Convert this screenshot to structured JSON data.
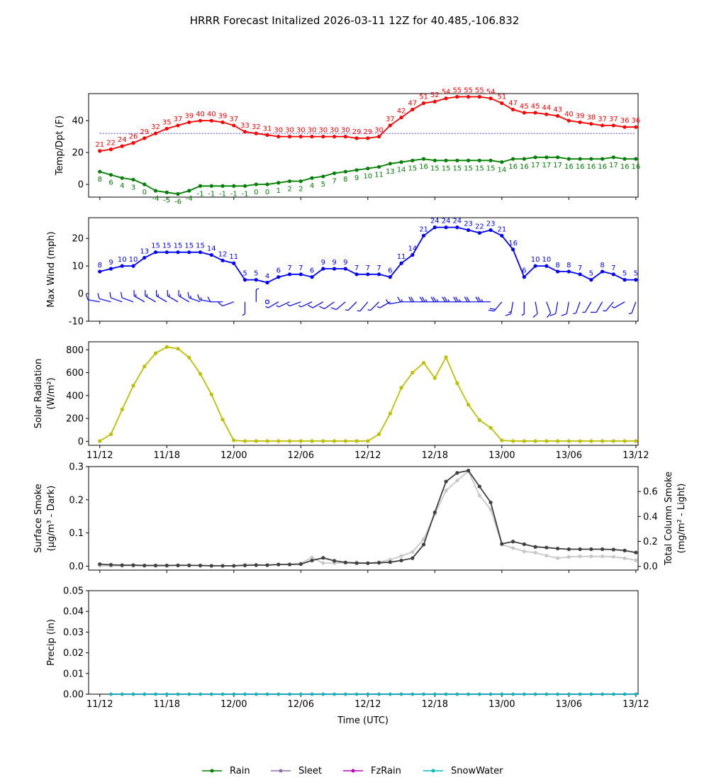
{
  "title": "HRRR Forecast Initalized 2026-03-11 12Z for 40.485,-106.832",
  "x_axis": {
    "label": "Time (UTC)",
    "ticks": [
      {
        "hour": 0,
        "label": "11/12"
      },
      {
        "hour": 6,
        "label": "11/18"
      },
      {
        "hour": 12,
        "label": "12/00"
      },
      {
        "hour": 18,
        "label": "12/06"
      },
      {
        "hour": 24,
        "label": "12/12"
      },
      {
        "hour": 30,
        "label": "12/18"
      },
      {
        "hour": 36,
        "label": "13/00"
      },
      {
        "hour": 42,
        "label": "13/06"
      },
      {
        "hour": 48,
        "label": "13/12"
      }
    ],
    "range": [
      -1,
      48.2
    ]
  },
  "colors": {
    "temp": "#ff0000",
    "dewpoint": "#008000",
    "freezing_line": "#0000ff",
    "wind": "#0000ff",
    "solar": "#bfbf00",
    "smoke_surface": "#404040",
    "smoke_column": "#c8c8c8",
    "rain": "#008000",
    "sleet": "#8c6fa6",
    "fzrain": "#bf00bf",
    "snowwater": "#00bfbf"
  },
  "legend": {
    "rain": "Rain",
    "sleet": "Sleet",
    "fzrain": "FzRain",
    "snowwater": "SnowWater"
  },
  "chart_data": [
    {
      "type": "line",
      "name": "temperature-dewpoint",
      "ylabel": "Temp/Dpt (F)",
      "ylim": [
        -8,
        57
      ],
      "yticks": [
        0,
        20,
        40
      ],
      "reference_line": 32,
      "x": [
        0,
        1,
        2,
        3,
        4,
        5,
        6,
        7,
        8,
        9,
        10,
        11,
        12,
        13,
        14,
        15,
        16,
        17,
        18,
        19,
        20,
        21,
        22,
        23,
        24,
        25,
        26,
        27,
        28,
        29,
        30,
        31,
        32,
        33,
        34,
        35,
        36,
        37,
        38,
        39,
        40,
        41,
        42,
        43,
        44,
        45,
        46,
        47,
        48
      ],
      "series": [
        {
          "name": "Temperature",
          "values": [
            21,
            22,
            24,
            26,
            29,
            32,
            35,
            37,
            39,
            40,
            40,
            39,
            37,
            33,
            32,
            31,
            30,
            30,
            30,
            30,
            30,
            30,
            30,
            29,
            29,
            30,
            37,
            42,
            47,
            51,
            52,
            54,
            55,
            55,
            55,
            54,
            51,
            47,
            45,
            45,
            44,
            43,
            40,
            39,
            38,
            37,
            37,
            36,
            36
          ]
        },
        {
          "name": "Dewpoint",
          "values": [
            8,
            6,
            4,
            3,
            0,
            -4,
            -5,
            -6,
            -4,
            -1,
            -1,
            -1,
            -1,
            -1,
            0,
            0,
            1,
            2,
            2,
            4,
            5,
            7,
            8,
            9,
            10,
            11,
            13,
            14,
            15,
            16,
            15,
            15,
            15,
            15,
            15,
            15,
            14,
            16,
            16,
            17,
            17,
            17,
            16,
            16,
            16,
            16,
            17,
            16,
            16
          ]
        }
      ]
    },
    {
      "type": "line",
      "name": "max-wind",
      "ylabel": "Max Wind (mph)",
      "ylim": [
        -10,
        27.5
      ],
      "yticks": [
        -10,
        0,
        10,
        20
      ],
      "x": [
        0,
        1,
        2,
        3,
        4,
        5,
        6,
        7,
        8,
        9,
        10,
        11,
        12,
        13,
        14,
        15,
        16,
        17,
        18,
        19,
        20,
        21,
        22,
        23,
        24,
        25,
        26,
        27,
        28,
        29,
        30,
        31,
        32,
        33,
        34,
        35,
        36,
        37,
        38,
        39,
        40,
        41,
        42,
        43,
        44,
        45,
        46,
        47,
        48
      ],
      "series": [
        {
          "name": "Max Wind",
          "values": [
            8,
            9,
            10,
            10,
            13,
            15,
            15,
            15,
            15,
            15,
            14,
            12,
            11,
            5,
            5,
            4,
            6,
            7,
            7,
            6,
            9,
            9,
            9,
            7,
            7,
            7,
            6,
            11,
            14,
            21,
            24,
            24,
            24,
            23,
            22,
            23,
            21,
            16,
            6,
            10,
            10,
            8,
            8,
            7,
            5,
            8,
            7,
            5,
            5
          ]
        }
      ],
      "barb_dirs_deg": [
        280,
        285,
        290,
        290,
        300,
        300,
        300,
        300,
        300,
        290,
        280,
        270,
        250,
        180,
        0,
        240,
        240,
        245,
        250,
        245,
        240,
        235,
        230,
        225,
        220,
        225,
        240,
        260,
        270,
        270,
        270,
        270,
        270,
        270,
        270,
        270,
        220,
        190,
        180,
        170,
        160,
        190,
        190,
        200,
        210,
        210,
        220,
        240,
        200
      ]
    },
    {
      "type": "line",
      "name": "solar-radiation",
      "ylabel": "Solar Radiation",
      "ylabel2": "(W/m²)",
      "ylim": [
        -35,
        870
      ],
      "yticks": [
        0,
        200,
        400,
        600,
        800
      ],
      "x": [
        0,
        1,
        2,
        3,
        4,
        5,
        6,
        7,
        8,
        9,
        10,
        11,
        12,
        13,
        14,
        15,
        16,
        17,
        18,
        19,
        20,
        21,
        22,
        23,
        24,
        25,
        26,
        27,
        28,
        29,
        30,
        31,
        32,
        33,
        34,
        35,
        36,
        37,
        38,
        39,
        40,
        41,
        42,
        43,
        44,
        45,
        46,
        47,
        48
      ],
      "series": [
        {
          "name": "Solar Radiation",
          "values": [
            2,
            62,
            278,
            486,
            654,
            770,
            825,
            810,
            732,
            590,
            410,
            190,
            8,
            2,
            2,
            2,
            2,
            2,
            2,
            2,
            2,
            2,
            2,
            2,
            2,
            62,
            243,
            468,
            600,
            686,
            553,
            735,
            508,
            320,
            185,
            118,
            8,
            2,
            2,
            2,
            2,
            2,
            2,
            2,
            2,
            2,
            2,
            2,
            2
          ]
        }
      ]
    },
    {
      "type": "line",
      "name": "smoke",
      "ylabel": "Surface Smoke",
      "ylabel2": "(μg/m³ - Dark)",
      "ylabel_right": "Total Column Smoke",
      "ylabel_right2": "(mg/m² - Light)",
      "ylim": [
        -0.012,
        0.3
      ],
      "yticks": [
        0.0,
        0.1,
        0.2,
        0.3
      ],
      "ylim_right": [
        -0.03,
        0.8
      ],
      "yticks_right": [
        0.0,
        0.2,
        0.4,
        0.6
      ],
      "x": [
        0,
        1,
        2,
        3,
        4,
        5,
        6,
        7,
        8,
        9,
        10,
        11,
        12,
        13,
        14,
        15,
        16,
        17,
        18,
        19,
        20,
        21,
        22,
        23,
        24,
        25,
        26,
        27,
        28,
        29,
        30,
        31,
        32,
        33,
        34,
        35,
        36,
        37,
        38,
        39,
        40,
        41,
        42,
        43,
        44,
        45,
        46,
        47,
        48
      ],
      "series": [
        {
          "name": "Surface Smoke",
          "axis": "left",
          "values": [
            0.006,
            0.004,
            0.003,
            0.003,
            0.002,
            0.002,
            0.002,
            0.002,
            0.002,
            0.002,
            0.001,
            0.001,
            0.001,
            0.002,
            0.003,
            0.003,
            0.005,
            0.005,
            0.006,
            0.017,
            0.025,
            0.016,
            0.011,
            0.009,
            0.009,
            0.01,
            0.012,
            0.017,
            0.024,
            0.065,
            0.162,
            0.255,
            0.281,
            0.288,
            0.24,
            0.192,
            0.067,
            0.074,
            0.066,
            0.058,
            0.056,
            0.053,
            0.051,
            0.051,
            0.051,
            0.051,
            0.05,
            0.047,
            0.041
          ]
        },
        {
          "name": "Total Column Smoke",
          "axis": "right",
          "values": [
            0.005,
            0.004,
            0.004,
            0.004,
            0.003,
            0.003,
            0.003,
            0.012,
            0.012,
            0.004,
            0.004,
            0.004,
            0.004,
            0.015,
            0.013,
            0.01,
            0.013,
            0.016,
            0.024,
            0.072,
            0.027,
            0.026,
            0.03,
            0.032,
            0.024,
            0.035,
            0.053,
            0.083,
            0.116,
            0.218,
            0.418,
            0.608,
            0.688,
            0.763,
            0.568,
            0.457,
            0.175,
            0.147,
            0.12,
            0.11,
            0.086,
            0.066,
            0.076,
            0.08,
            0.08,
            0.08,
            0.077,
            0.065,
            0.049
          ]
        }
      ]
    },
    {
      "type": "line",
      "name": "precipitation",
      "ylabel": "Precip (in)",
      "ylim": [
        0,
        0.05
      ],
      "yticks": [
        0.0,
        0.01,
        0.02,
        0.03,
        0.04,
        0.05
      ],
      "x": [
        1,
        2,
        3,
        4,
        5,
        6,
        7,
        8,
        9,
        10,
        11,
        12,
        13,
        14,
        15,
        16,
        17,
        18,
        19,
        20,
        21,
        22,
        23,
        24,
        25,
        26,
        27,
        28,
        29,
        30,
        31,
        32,
        33,
        34,
        35,
        36,
        37,
        38,
        39,
        40,
        41,
        42,
        43,
        44,
        45,
        46,
        47,
        48
      ],
      "series": [
        {
          "name": "Rain",
          "values": [
            0,
            0,
            0,
            0,
            0,
            0,
            0,
            0,
            0,
            0,
            0,
            0,
            0,
            0,
            0,
            0,
            0,
            0,
            0,
            0,
            0,
            0,
            0,
            0,
            0,
            0,
            0,
            0,
            0,
            0,
            0,
            0,
            0,
            0,
            0,
            0,
            0,
            0,
            0,
            0,
            0,
            0,
            0,
            0,
            0,
            0,
            0,
            0
          ]
        },
        {
          "name": "Sleet",
          "values": [
            0,
            0,
            0,
            0,
            0,
            0,
            0,
            0,
            0,
            0,
            0,
            0,
            0,
            0,
            0,
            0,
            0,
            0,
            0,
            0,
            0,
            0,
            0,
            0,
            0,
            0,
            0,
            0,
            0,
            0,
            0,
            0,
            0,
            0,
            0,
            0,
            0,
            0,
            0,
            0,
            0,
            0,
            0,
            0,
            0,
            0,
            0,
            0
          ]
        },
        {
          "name": "FzRain",
          "values": [
            0,
            0,
            0,
            0,
            0,
            0,
            0,
            0,
            0,
            0,
            0,
            0,
            0,
            0,
            0,
            0,
            0,
            0,
            0,
            0,
            0,
            0,
            0,
            0,
            0,
            0,
            0,
            0,
            0,
            0,
            0,
            0,
            0,
            0,
            0,
            0,
            0,
            0,
            0,
            0,
            0,
            0,
            0,
            0,
            0,
            0,
            0,
            0
          ]
        },
        {
          "name": "SnowWater",
          "values": [
            0,
            0,
            0,
            0,
            0,
            0,
            0,
            0,
            0,
            0,
            0,
            0,
            0,
            0,
            0,
            0,
            0,
            0,
            0,
            0,
            0,
            0,
            0,
            0,
            0,
            0,
            0,
            0,
            0,
            0,
            0,
            0,
            0,
            0,
            0,
            0,
            0,
            0,
            0,
            0,
            0,
            0,
            0,
            0,
            0,
            0,
            0,
            0
          ]
        }
      ]
    }
  ]
}
